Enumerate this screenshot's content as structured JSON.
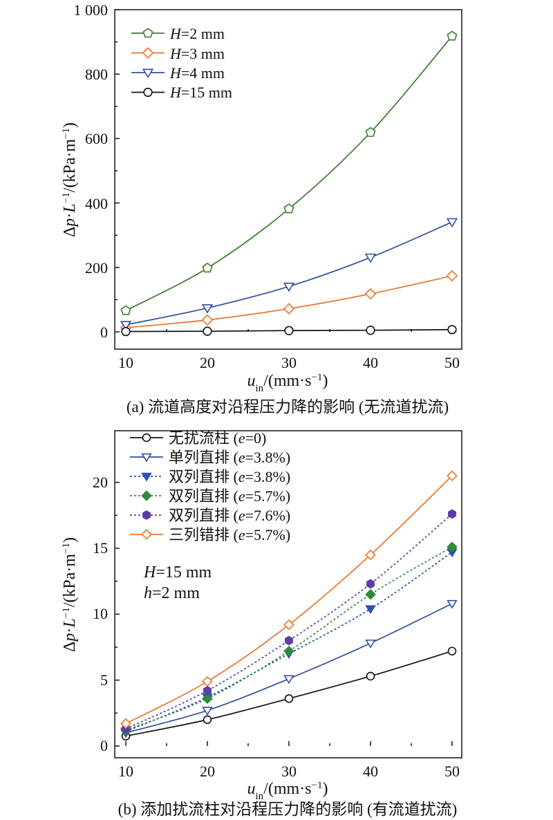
{
  "chart_data": [
    {
      "type": "line",
      "panel": "a",
      "caption": "(a) 流道高度对沿程压力降的影响 (无流道扰流)",
      "xlabel": {
        "main": "u",
        "sub": "in",
        "rest": "/(mm·s",
        "sup": "−1",
        "end": ")"
      },
      "ylabel": {
        "pre": "Δ",
        "v1": "p",
        "dot": "·",
        "v2": "L",
        "sup1": "−1",
        "mid": "/(kPa·m",
        "sup2": "−1",
        "end": ")"
      },
      "xlim": [
        10,
        50
      ],
      "ylim": [
        0,
        1000
      ],
      "xticks": [
        10,
        20,
        30,
        40,
        50
      ],
      "xtick_labels": [
        "10",
        "20",
        "30",
        "40",
        "50"
      ],
      "yticks": [
        0,
        200,
        400,
        600,
        800,
        1000
      ],
      "ytick_labels": [
        "0",
        "200",
        "400",
        "600",
        "800",
        "1 000"
      ],
      "x": [
        10,
        20,
        30,
        40,
        50
      ],
      "legend_position": "top-left",
      "series": [
        {
          "name": "H=2 mm",
          "legend": {
            "var": "H",
            "rest": "=2 mm"
          },
          "color": "#3a7d2c",
          "marker": "pentagon",
          "filled": false,
          "dashed": false,
          "values": [
            66,
            198,
            382,
            619,
            918
          ]
        },
        {
          "name": "H=3 mm",
          "legend": {
            "var": "H",
            "rest": "=3 mm"
          },
          "color": "#e8742a",
          "marker": "diamond",
          "filled": false,
          "dashed": false,
          "values": [
            13,
            37,
            72,
            118,
            174
          ]
        },
        {
          "name": "H=4 mm",
          "legend": {
            "var": "H",
            "rest": "=4 mm"
          },
          "color": "#2e4e9e",
          "marker": "triangle-down",
          "filled": false,
          "dashed": false,
          "values": [
            22,
            74,
            141,
            231,
            341
          ]
        },
        {
          "name": "H=15 mm",
          "legend": {
            "var": "H",
            "rest": "=15 mm"
          },
          "color": "#111111",
          "marker": "circle",
          "filled": false,
          "dashed": false,
          "values": [
            1,
            2,
            4,
            5,
            7
          ]
        }
      ]
    },
    {
      "type": "line",
      "panel": "b",
      "caption": "(b) 添加扰流柱对沿程压力降的影响 (有流道扰流)",
      "xlabel": {
        "main": "u",
        "sub": "in",
        "rest": "/(mm·s",
        "sup": "−1",
        "end": ")"
      },
      "ylabel": {
        "pre": "Δ",
        "v1": "p",
        "dot": "·",
        "v2": "L",
        "sup1": "−1",
        "mid": "/(kPa·m",
        "sup2": "−1",
        "end": ")"
      },
      "xlim": [
        10,
        50
      ],
      "ylim": [
        0,
        22.5
      ],
      "xticks": [
        10,
        20,
        30,
        40,
        50
      ],
      "xtick_labels": [
        "10",
        "20",
        "30",
        "40",
        "50"
      ],
      "yticks": [
        0,
        5,
        10,
        15,
        20
      ],
      "ytick_labels": [
        "0",
        "5",
        "10",
        "15",
        "20"
      ],
      "x": [
        10,
        20,
        30,
        40,
        50
      ],
      "legend_position": "top-left",
      "annotations": [
        {
          "var": "H",
          "rest": "=15 mm"
        },
        {
          "var": "h",
          "rest": "=2 mm"
        }
      ],
      "series": [
        {
          "name": "无扰流柱 (e=0)",
          "legend": {
            "pre": "无扰流柱 (",
            "var": "e",
            "rest": "=0)"
          },
          "color": "#111111",
          "marker": "circle",
          "filled": false,
          "dashed": false,
          "values": [
            0.75,
            2.0,
            3.6,
            5.3,
            7.2
          ]
        },
        {
          "name": "单列直排 (e=3.8%)",
          "legend": {
            "pre": "单列直排 (",
            "var": "e",
            "rest": "=3.8%)"
          },
          "color": "#2e4e9e",
          "marker": "triangle-down",
          "filled": false,
          "dashed": false,
          "values": [
            1.0,
            2.7,
            5.1,
            7.8,
            10.8
          ]
        },
        {
          "name": "双列直排 (e=3.8%)",
          "legend": {
            "pre": "双列直排 (",
            "var": "e",
            "rest": "=3.8%)"
          },
          "color": "#2a4fb5",
          "marker": "triangle-down",
          "filled": true,
          "dashed": true,
          "values": [
            1.1,
            3.7,
            7.0,
            10.4,
            14.7
          ]
        },
        {
          "name": "双列直排 (e=5.7%)",
          "legend": {
            "pre": "双列直排 (",
            "var": "e",
            "rest": "=5.7%)"
          },
          "color": "#2f8a3a",
          "marker": "diamond",
          "filled": true,
          "dashed": true,
          "values": [
            1.2,
            3.6,
            7.2,
            11.5,
            15.1
          ]
        },
        {
          "name": "双列直排 (e=7.6%)",
          "legend": {
            "pre": "双列直排 (",
            "var": "e",
            "rest": "=7.6%)"
          },
          "color": "#5b3fa6",
          "marker": "hexagon",
          "filled": true,
          "dashed": true,
          "values": [
            1.3,
            4.2,
            8.0,
            12.3,
            17.6
          ]
        },
        {
          "name": "三列错排 (e=5.7%)",
          "legend": {
            "pre": "三列错排 (",
            "var": "e",
            "rest": "=5.7%)"
          },
          "color": "#e8742a",
          "marker": "diamond",
          "filled": false,
          "dashed": false,
          "values": [
            1.7,
            4.9,
            9.2,
            14.5,
            20.5
          ]
        }
      ]
    }
  ]
}
